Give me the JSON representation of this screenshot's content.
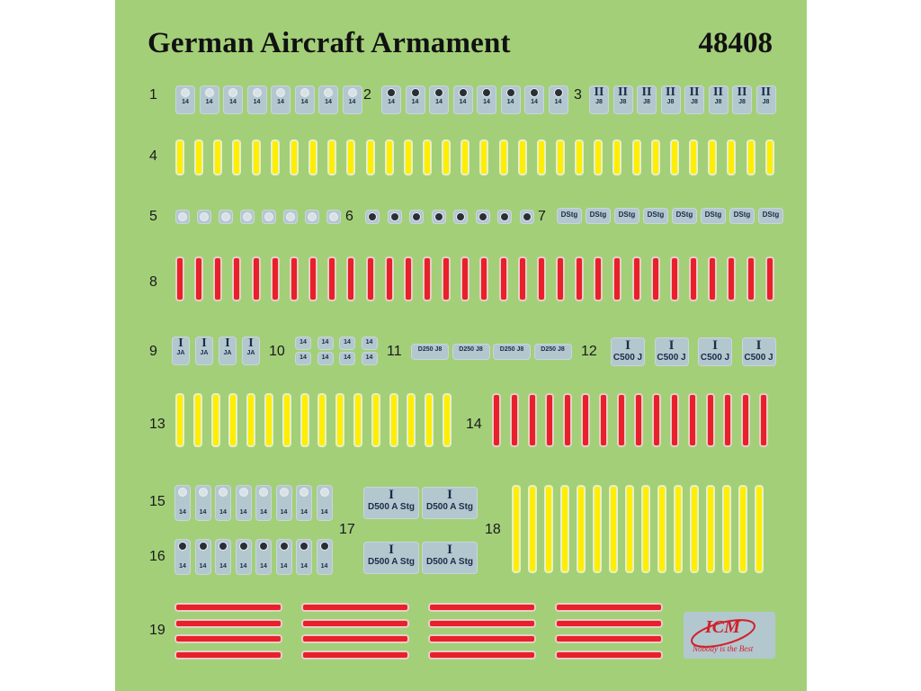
{
  "header": {
    "title": "German Aircraft Armament",
    "code": "48408"
  },
  "labels": [
    "1",
    "2",
    "3",
    "4",
    "5",
    "6",
    "7",
    "8",
    "9",
    "10",
    "11",
    "12",
    "13",
    "14",
    "15",
    "16",
    "17",
    "18",
    "19"
  ],
  "decal_text": {
    "g14": "14",
    "j8": "J8",
    "roman_ii": "II",
    "roman_i": "I",
    "ja": "JA",
    "dstg": "DStg",
    "d250": "D250 J8",
    "c500": "C500 J",
    "d500": "D500 A Stg"
  },
  "logo": {
    "brand": "ICM",
    "slogan": "Nobody is the Best"
  },
  "colors": {
    "sheet": "#a3cf79",
    "yellow": "#ffee00",
    "red": "#e8202b",
    "decal": "#b3c7cf",
    "ink": "#1b2b48"
  }
}
